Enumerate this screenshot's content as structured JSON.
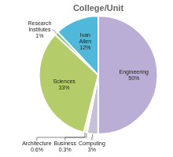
{
  "chart_data": {
    "type": "pie",
    "title": "College/Unit",
    "categories": [
      "Engineering",
      "Computing",
      "Business",
      "Architecture",
      "Sciences",
      "Research\nInstitutes",
      "Ivan\nAllen"
    ],
    "values": [
      50.0,
      3.0,
      0.3,
      0.6,
      33.0,
      1.0,
      12.0
    ],
    "value_labels": [
      "50%",
      "3%",
      "0.3%",
      "0.6%",
      "33%",
      "1%",
      "12%"
    ],
    "colors": [
      "#bbaed6",
      "#c8bfd8",
      "#f0a896",
      "#e8d84c",
      "#b5cc6a",
      "#78c878",
      "#50b8d8"
    ],
    "data_labels": true
  }
}
